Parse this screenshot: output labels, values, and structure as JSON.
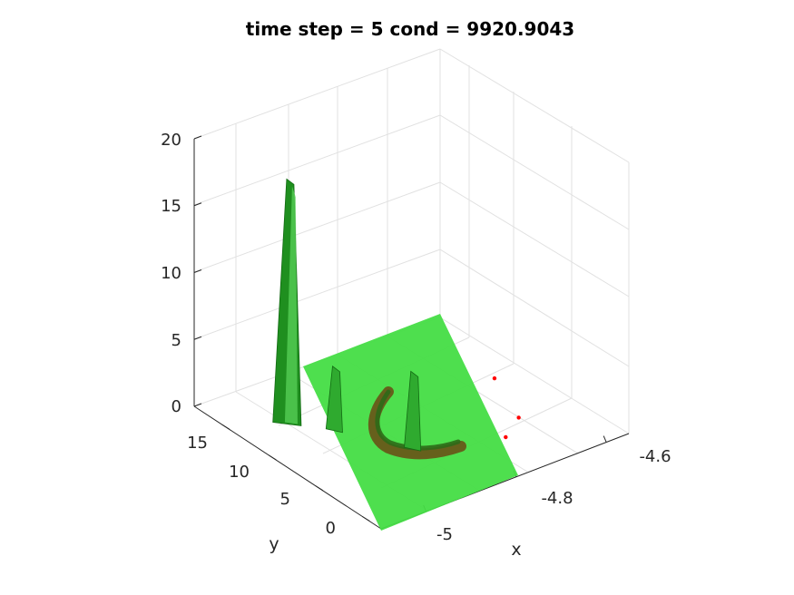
{
  "chart_data": {
    "type": "surface",
    "title": "time step = 5 cond = 9920.9043",
    "xlabel": "x",
    "ylabel": "y",
    "zlabel": "",
    "x_ticks": [
      "-5",
      "-4.8",
      "-4.6"
    ],
    "y_ticks": [
      "0",
      "5",
      "10",
      "15"
    ],
    "z_ticks": [
      "0",
      "5",
      "10",
      "15",
      "20"
    ],
    "xlim": [
      -5.1,
      -4.55
    ],
    "ylim": [
      -2,
      18
    ],
    "zlim": [
      0,
      20
    ],
    "grid": true,
    "surface_color": "#44dd44",
    "peak_color": "#1f8f1f",
    "ridge_color": "#6b4a14",
    "marker_color": "#ff0000",
    "peaks": [
      {
        "x": -4.98,
        "y": 13.5,
        "z": 17.5
      },
      {
        "x": -4.93,
        "y": 11.0,
        "z": 4.0
      },
      {
        "x": -4.86,
        "y": 6.0,
        "z": 5.0
      }
    ],
    "red_points": [
      {
        "x": -4.62,
        "y": 9.0,
        "z": 0.0
      },
      {
        "x": -4.67,
        "y": 4.0,
        "z": 0.0
      },
      {
        "x": -4.73,
        "y": 2.5,
        "z": 0.0
      }
    ]
  }
}
